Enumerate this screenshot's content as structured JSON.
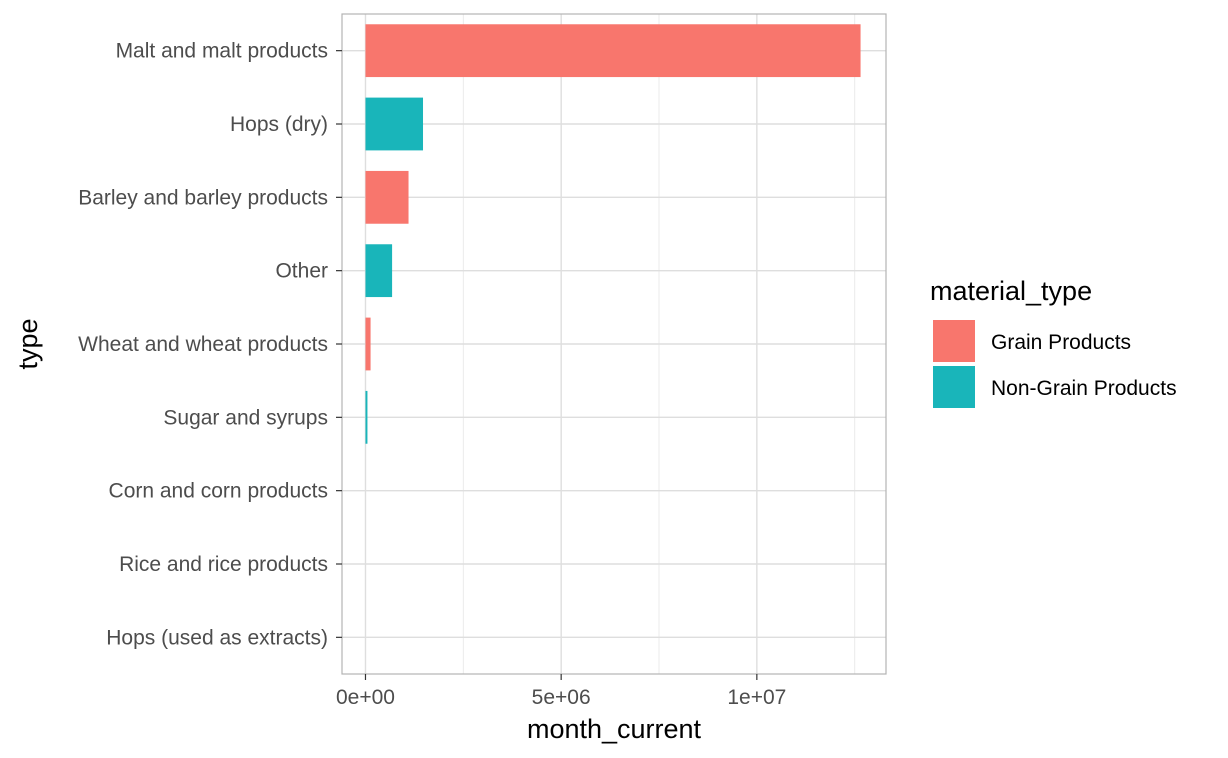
{
  "chart_data": {
    "type": "bar",
    "orientation": "horizontal",
    "xlabel": "month_current",
    "ylabel": "type",
    "xlim": [
      -600000,
      13300000
    ],
    "x_ticks": [
      {
        "value": 0,
        "label": "0e+00"
      },
      {
        "value": 5000000,
        "label": "5e+06"
      },
      {
        "value": 10000000,
        "label": "1e+07"
      }
    ],
    "x_minor_ticks": [
      2500000,
      7500000,
      12500000
    ],
    "grid": true,
    "categories": [
      "Malt and malt products",
      "Hops (dry)",
      "Barley and barley products",
      "Other",
      "Wheat and wheat products",
      "Sugar and syrups",
      "Corn and corn products",
      "Rice and rice products",
      "Hops (used as extracts)"
    ],
    "values": [
      12650000,
      1470000,
      1100000,
      680000,
      130000,
      50000,
      0,
      0,
      0
    ],
    "material_type": [
      "Grain Products",
      "Non-Grain Products",
      "Grain Products",
      "Non-Grain Products",
      "Grain Products",
      "Non-Grain Products",
      "Grain Products",
      "Grain Products",
      "Non-Grain Products"
    ],
    "legend": {
      "title": "material_type",
      "position": "right",
      "items": [
        {
          "label": "Grain Products",
          "color": "#f8766d"
        },
        {
          "label": "Non-Grain Products",
          "color": "#19b5ba"
        }
      ]
    }
  }
}
